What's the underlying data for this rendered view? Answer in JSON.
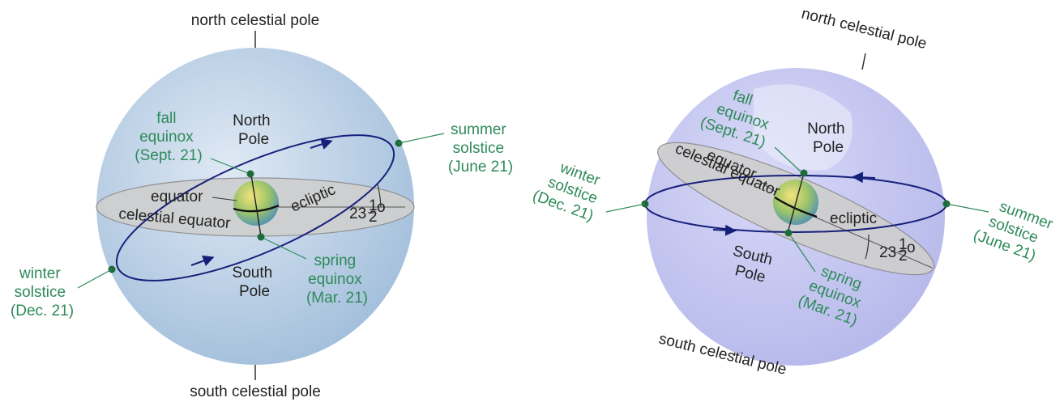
{
  "left": {
    "north_celestial_pole": "north celestial pole",
    "south_celestial_pole": "south celestial pole",
    "north_pole": [
      "North",
      "Pole"
    ],
    "south_pole": [
      "South",
      "Pole"
    ],
    "equator": "equator",
    "celestial_equator": "celestial equator",
    "ecliptic": "ecliptic",
    "tilt": {
      "value": "23",
      "frac_num": "1",
      "frac_den": "2",
      "unit": "o"
    },
    "fall_equinox": [
      "fall",
      "equinox",
      "(Sept. 21)"
    ],
    "summer_solstice": [
      "summer",
      "solstice",
      "(June 21)"
    ],
    "winter_solstice": [
      "winter",
      "solstice",
      "(Dec. 21)"
    ],
    "spring_equinox": [
      "spring",
      "equinox",
      "(Mar. 21)"
    ]
  },
  "right": {
    "north_celestial_pole": "north celestial pole",
    "south_celestial_pole": "south celestial pole",
    "north_pole": [
      "North",
      "Pole"
    ],
    "south_pole": [
      "South",
      "Pole"
    ],
    "equator": "equator",
    "celestial_equator": "celestial equator",
    "ecliptic": "ecliptic",
    "tilt": {
      "value": "23",
      "frac_num": "1",
      "frac_den": "2",
      "unit": "o"
    },
    "fall_equinox": [
      "fall",
      "equinox",
      "(Sept. 21)"
    ],
    "summer_solstice": [
      "summer",
      "solstice",
      "(June 21)"
    ],
    "winter_solstice": [
      "winter",
      "solstice",
      "(Dec. 21)"
    ],
    "spring_equinox": [
      "spring",
      "equinox",
      "(Mar. 21)"
    ]
  },
  "colors": {
    "sphere_left": "#b9cfe6",
    "sphere_right": "#c4c6f2",
    "equator_plane": "#cfcfcf",
    "orbit": "#16207a",
    "green_text": "#2e8a5a",
    "dot": "#1e6b3a"
  }
}
